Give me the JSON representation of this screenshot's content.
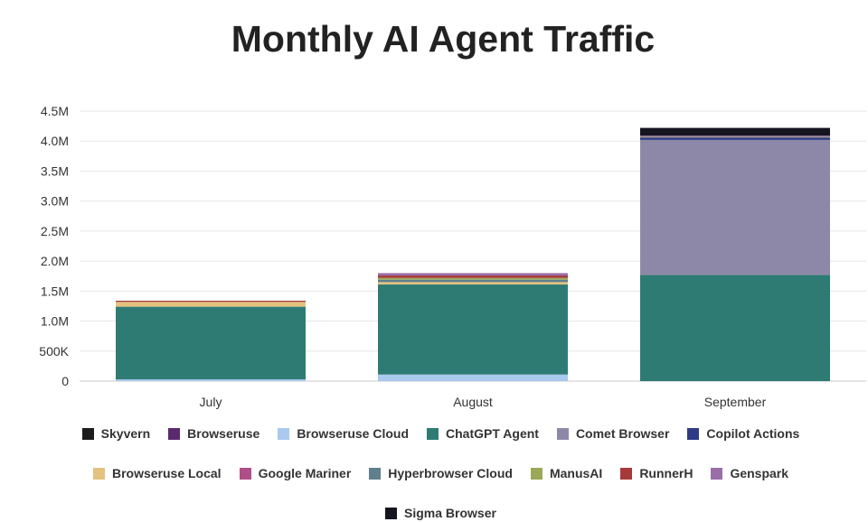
{
  "chart_data": {
    "type": "bar",
    "stacked": true,
    "title": "Monthly AI Agent Traffic",
    "categories": [
      "July",
      "August",
      "September"
    ],
    "ylim": [
      0,
      4500000
    ],
    "yticks": [
      0,
      500000,
      1000000,
      1500000,
      2000000,
      2500000,
      3000000,
      3500000,
      4000000,
      4500000
    ],
    "ytick_labels": [
      "0",
      "500K",
      "1.0M",
      "1.5M",
      "2.0M",
      "2.5M",
      "3.0M",
      "3.5M",
      "4.0M",
      "4.5M"
    ],
    "grid": true,
    "legend_position": "bottom",
    "series": [
      {
        "name": "Skyvern",
        "color": "#1c1c1c",
        "values": [
          0,
          0,
          0
        ]
      },
      {
        "name": "Browseruse",
        "color": "#5b2a6e",
        "values": [
          0,
          0,
          0
        ]
      },
      {
        "name": "Browseruse Cloud",
        "color": "#a9c9ee",
        "values": [
          30000,
          110000,
          0
        ]
      },
      {
        "name": "ChatGPT Agent",
        "color": "#2e7b74",
        "values": [
          1210000,
          1500000,
          1770000
        ]
      },
      {
        "name": "Comet Browser",
        "color": "#8e88a8",
        "values": [
          0,
          0,
          2250000
        ]
      },
      {
        "name": "Copilot Actions",
        "color": "#2f3a86",
        "values": [
          0,
          0,
          40000
        ]
      },
      {
        "name": "Browseruse Local",
        "color": "#e3c27e",
        "values": [
          80000,
          40000,
          0
        ]
      },
      {
        "name": "Google Mariner",
        "color": "#b04e88",
        "values": [
          0,
          0,
          0
        ]
      },
      {
        "name": "Hyperbrowser Cloud",
        "color": "#5f7f8c",
        "values": [
          0,
          40000,
          0
        ]
      },
      {
        "name": "ManusAI",
        "color": "#9aa858",
        "values": [
          0,
          30000,
          10000
        ]
      },
      {
        "name": "RunnerH",
        "color": "#a63a3a",
        "values": [
          20000,
          40000,
          0
        ]
      },
      {
        "name": "Genspark",
        "color": "#9a6fa8",
        "values": [
          0,
          40000,
          20000
        ]
      },
      {
        "name": "Sigma Browser",
        "color": "#151520",
        "values": [
          0,
          0,
          130000
        ]
      }
    ]
  }
}
